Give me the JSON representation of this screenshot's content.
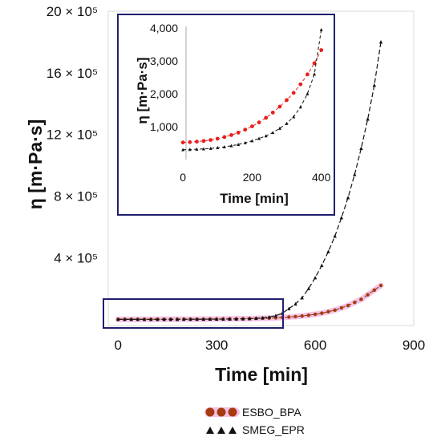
{
  "chart_data": [
    {
      "type": "line",
      "xlabel": "Time [min]",
      "ylabel": "η [m·Pa·s]",
      "xlim": [
        -30,
        900
      ],
      "ylim": [
        -40000,
        2000000
      ],
      "x_ticks": [
        0,
        300,
        600,
        900
      ],
      "x_tick_labels": [
        "0",
        "300",
        "600",
        "900"
      ],
      "y_ticks": [
        400000,
        800000,
        1200000,
        1600000,
        2000000
      ],
      "y_tick_labels": [
        "4 × 10⁵",
        "8 × 10⁵",
        "12 × 10⁵",
        "16 × 10⁵",
        "20 × 10⁵"
      ],
      "grid": false,
      "series": [
        {
          "name": "ESBO_BPA",
          "color": "#c8201e",
          "marker": "circle",
          "x": [
            0,
            20,
            40,
            60,
            80,
            100,
            120,
            140,
            160,
            180,
            200,
            220,
            240,
            260,
            280,
            300,
            320,
            340,
            360,
            380,
            400,
            420,
            440,
            460,
            480,
            500,
            520,
            540,
            560,
            580,
            600,
            620,
            640,
            660,
            680,
            700,
            720,
            740,
            760,
            780,
            800
          ],
          "y": [
            500,
            505,
            520,
            540,
            570,
            610,
            660,
            720,
            800,
            900,
            1000,
            1150,
            1300,
            1500,
            1800,
            2100,
            2500,
            3000,
            3500,
            4000,
            5000,
            6000,
            7000,
            8000,
            10000,
            12000,
            15000,
            18000,
            22000,
            27000,
            33000,
            40000,
            50000,
            60000,
            75000,
            90000,
            110000,
            130000,
            160000,
            190000,
            220000
          ]
        },
        {
          "name": "SMEG_EPR",
          "color": "#111111",
          "marker": "triangle",
          "x": [
            0,
            20,
            40,
            60,
            80,
            100,
            120,
            140,
            160,
            180,
            200,
            220,
            240,
            260,
            280,
            300,
            320,
            340,
            360,
            380,
            400,
            420,
            440,
            460,
            480,
            500,
            520,
            540,
            560,
            580,
            600,
            620,
            640,
            660,
            680,
            700,
            720,
            740,
            760,
            780,
            800
          ],
          "y": [
            300,
            305,
            315,
            330,
            350,
            380,
            420,
            470,
            540,
            620,
            720,
            850,
            1000,
            1200,
            1400,
            1700,
            2000,
            2400,
            3000,
            3600,
            5000,
            7000,
            10000,
            15000,
            24000,
            40000,
            70000,
            100000,
            140000,
            200000,
            270000,
            350000,
            440000,
            540000,
            660000,
            790000,
            940000,
            1110000,
            1300000,
            1520000,
            1800000
          ]
        }
      ],
      "legend": {
        "position": "bottom",
        "entries": [
          "ESBO_BPA",
          "SMEG_EPR"
        ]
      }
    },
    {
      "type": "line",
      "role": "inset",
      "xlabel": "Time [min]",
      "ylabel": "η [m·Pa·s]",
      "xlim": [
        -5,
        410
      ],
      "ylim": [
        0,
        4000
      ],
      "x_ticks": [
        0,
        200,
        400
      ],
      "x_tick_labels": [
        "0",
        "200",
        "400"
      ],
      "y_ticks": [
        1000,
        2000,
        3000,
        4000
      ],
      "y_tick_labels": [
        "1,000",
        "2,000",
        "3,000",
        "4,000"
      ],
      "grid": false,
      "series": [
        {
          "name": "ESBO_BPA",
          "color": "#e8201e",
          "marker": "circle",
          "x": [
            0,
            20,
            40,
            60,
            80,
            100,
            120,
            140,
            160,
            180,
            200,
            220,
            240,
            260,
            280,
            300,
            320,
            340,
            360,
            380,
            400
          ],
          "y": [
            520,
            530,
            545,
            565,
            595,
            635,
            685,
            745,
            820,
            910,
            1010,
            1130,
            1270,
            1430,
            1610,
            1810,
            2030,
            2290,
            2590,
            2930,
            3330
          ]
        },
        {
          "name": "SMEG_EPR",
          "color": "#111111",
          "marker": "triangle",
          "x": [
            0,
            20,
            40,
            60,
            80,
            100,
            120,
            140,
            160,
            180,
            200,
            220,
            240,
            260,
            280,
            300,
            320,
            340,
            360,
            380,
            400
          ],
          "y": [
            300,
            305,
            315,
            325,
            340,
            360,
            385,
            420,
            460,
            510,
            570,
            640,
            720,
            820,
            950,
            1100,
            1300,
            1600,
            2000,
            2600,
            3950
          ]
        }
      ]
    }
  ]
}
